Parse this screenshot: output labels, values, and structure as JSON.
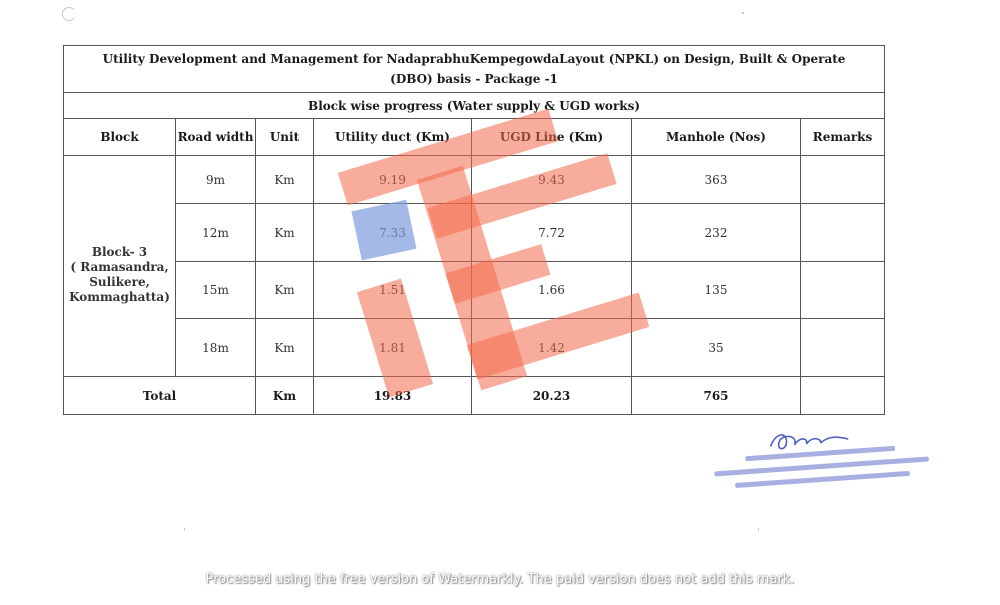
{
  "document": {
    "title_line1": "Utility Development and Management for NadaprabhuKempegowdaLayout (NPKL) on Design, Built & Operate",
    "title_line2": "(DBO) basis - Package -1",
    "subtitle": "Block wise progress (Water supply  & UGD works)",
    "headers": {
      "block": "Block",
      "road_width": "Road width",
      "unit": "Unit",
      "utility_duct": "Utility duct (Km)",
      "ugd_line": "UGD Line (Km)",
      "manhole": "Manhole (Nos)",
      "remarks": "Remarks"
    },
    "block": {
      "name": "Block- 3",
      "areas": [
        "( Ramasandra,",
        "Sulikere,",
        "Kommaghatta)"
      ]
    },
    "rows": [
      {
        "road_width": "9m",
        "unit": "Km",
        "utility_duct": "9.19",
        "ugd_line": "9.43",
        "manhole": "363",
        "remarks": ""
      },
      {
        "road_width": "12m",
        "unit": "Km",
        "utility_duct": "7.33",
        "ugd_line": "7.72",
        "manhole": "232",
        "remarks": ""
      },
      {
        "road_width": "15m",
        "unit": "Km",
        "utility_duct": "1.51",
        "ugd_line": "1.66",
        "manhole": "135",
        "remarks": ""
      },
      {
        "road_width": "18m",
        "unit": "Km",
        "utility_duct": "1.81",
        "ugd_line": "1.42",
        "manhole": "35",
        "remarks": ""
      }
    ],
    "total": {
      "label": "Total",
      "unit": "Km",
      "utility_duct": "19.83",
      "ugd_line": "20.23",
      "manhole": "765",
      "remarks": ""
    }
  },
  "stamp": {
    "ink_color": "#5060c0"
  },
  "watermark": {
    "color": "#f26a4b",
    "footer_text": "Processed using the free version of Watermarkly. The paid version does not add this mark."
  }
}
